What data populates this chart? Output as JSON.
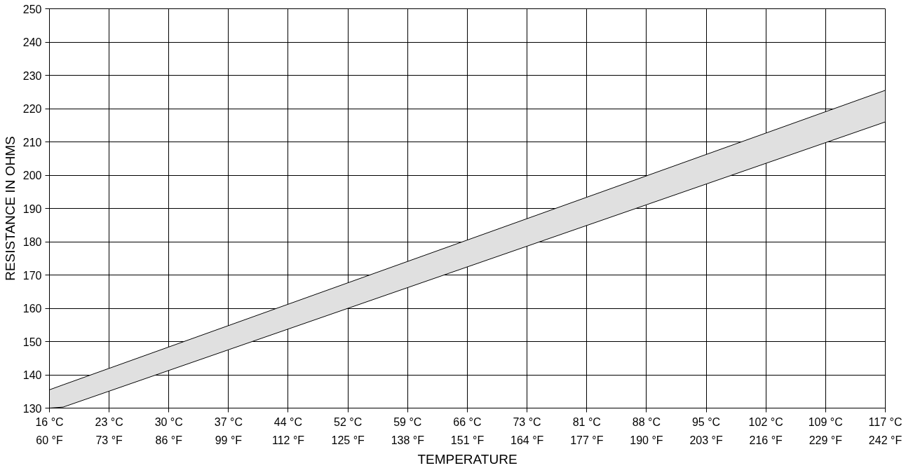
{
  "chart_data": {
    "type": "line",
    "xlabel": "TEMPERATURE",
    "ylabel": "RESISTANCE IN OHMS",
    "xlim": [
      15.56,
      116.67
    ],
    "ylim": [
      130,
      250
    ],
    "xticks": [
      {
        "value": 15.56,
        "label": "16 °C"
      },
      {
        "value": 22.78,
        "label": "23 °C"
      },
      {
        "value": 30,
        "label": "30 °C"
      },
      {
        "value": 37.22,
        "label": "37 °C"
      },
      {
        "value": 44.44,
        "label": "44 °C"
      },
      {
        "value": 51.67,
        "label": "52 °C"
      },
      {
        "value": 58.89,
        "label": "59 °C"
      },
      {
        "value": 66.11,
        "label": "66 °C"
      },
      {
        "value": 73.33,
        "label": "73 °C"
      },
      {
        "value": 80.56,
        "label": "81 °C"
      },
      {
        "value": 87.78,
        "label": "88 °C"
      },
      {
        "value": 95,
        "label": "95 °C"
      },
      {
        "value": 102.22,
        "label": "102 °C"
      },
      {
        "value": 109.44,
        "label": "109 °C"
      },
      {
        "value": 116.67,
        "label": "117 °C"
      }
    ],
    "x2lim": [
      60,
      242
    ],
    "x2ticks": [
      {
        "value": 60,
        "label": "60 °F"
      },
      {
        "value": 73,
        "label": "73 °F"
      },
      {
        "value": 86,
        "label": "86 °F"
      },
      {
        "value": 99,
        "label": "99 °F"
      },
      {
        "value": 112,
        "label": "112 °F"
      },
      {
        "value": 125,
        "label": "125 °F"
      },
      {
        "value": 138,
        "label": "138 °F"
      },
      {
        "value": 151,
        "label": "151 °F"
      },
      {
        "value": 164,
        "label": "164 °F"
      },
      {
        "value": 177,
        "label": "177 °F"
      },
      {
        "value": 190,
        "label": "190 °F"
      },
      {
        "value": 203,
        "label": "203 °F"
      },
      {
        "value": 216,
        "label": "216 °F"
      },
      {
        "value": 229,
        "label": "229 °F"
      },
      {
        "value": 242,
        "label": "242 °F"
      }
    ],
    "yticks": [
      130,
      140,
      150,
      160,
      170,
      180,
      190,
      200,
      210,
      220,
      230,
      240,
      250
    ],
    "grid": true,
    "series": [
      {
        "color": "#000000",
        "x": [
          15.56,
          17.22,
          116.67
        ],
        "values": [
          135.5,
          137,
          225.5
        ],
        "lower": [
          130,
          130.3,
          216
        ],
        "upper": [
          135.5,
          137,
          225.5
        ]
      },
      {
        "color": "#000000",
        "x": [
          15.56,
          17.22,
          116.67
        ],
        "values": [
          130,
          130.3,
          216
        ]
      }
    ]
  }
}
